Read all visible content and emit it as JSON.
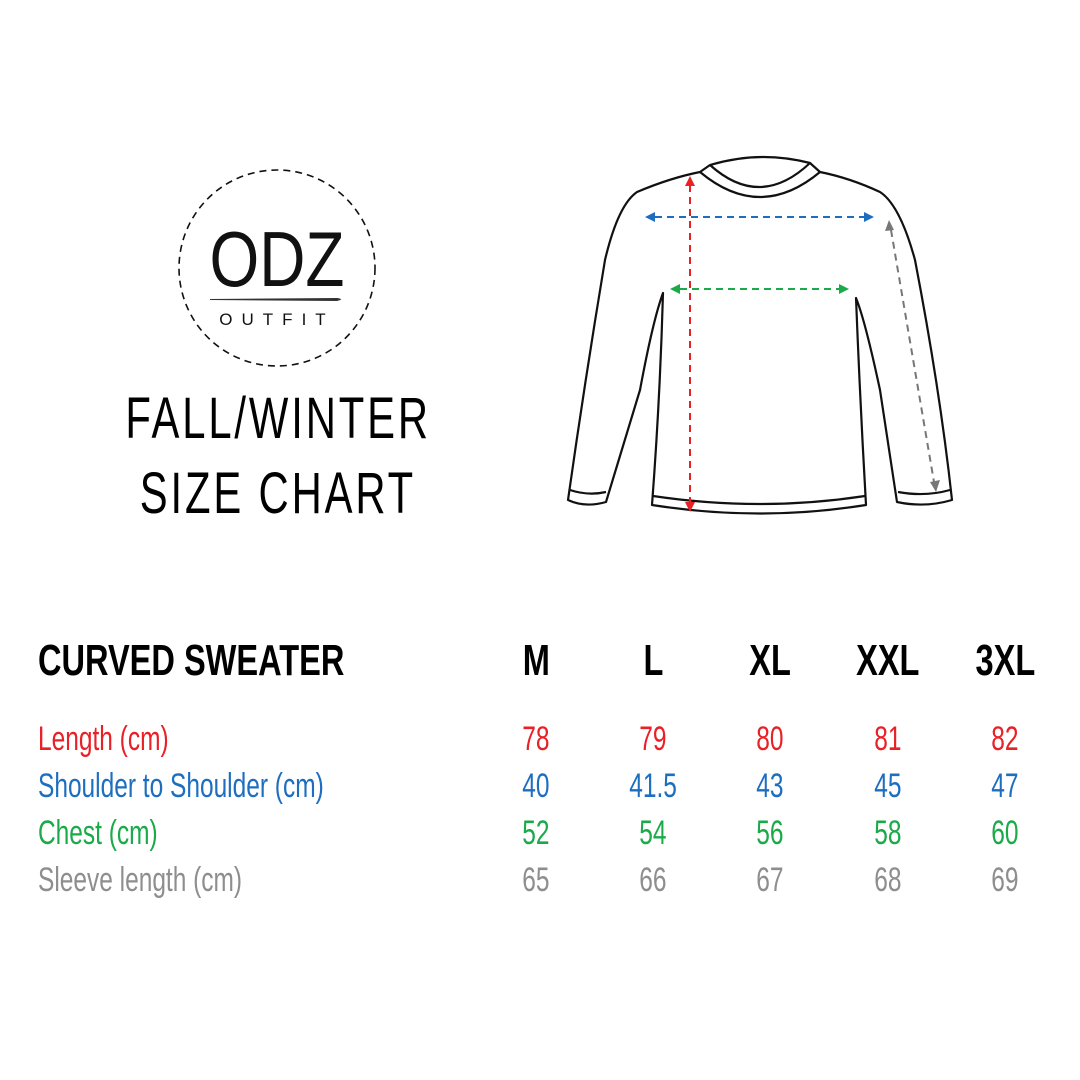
{
  "brand": {
    "name": "ODZ",
    "sub": "OUTFIT"
  },
  "heading": {
    "line1": "FALL/WINTER",
    "line2": "SIZE CHART"
  },
  "colors": {
    "length": "#e82127",
    "shoulder": "#1e6ec0",
    "chest": "#1aaa4a",
    "sleeve": "#8e8e8e"
  },
  "table": {
    "title": "CURVED SWEATER",
    "sizes": [
      "M",
      "L",
      "XL",
      "XXL",
      "3XL"
    ],
    "rows": [
      {
        "label": "Length (cm)",
        "values": [
          "78",
          "79",
          "80",
          "81",
          "82"
        ]
      },
      {
        "label": "Shoulder to Shoulder (cm)",
        "values": [
          "40",
          "41.5",
          "43",
          "45",
          "47"
        ]
      },
      {
        "label": "Chest (cm)",
        "values": [
          "52",
          "54",
          "56",
          "58",
          "60"
        ]
      },
      {
        "label": "Sleeve length (cm)",
        "values": [
          "65",
          "66",
          "67",
          "68",
          "69"
        ]
      }
    ]
  }
}
